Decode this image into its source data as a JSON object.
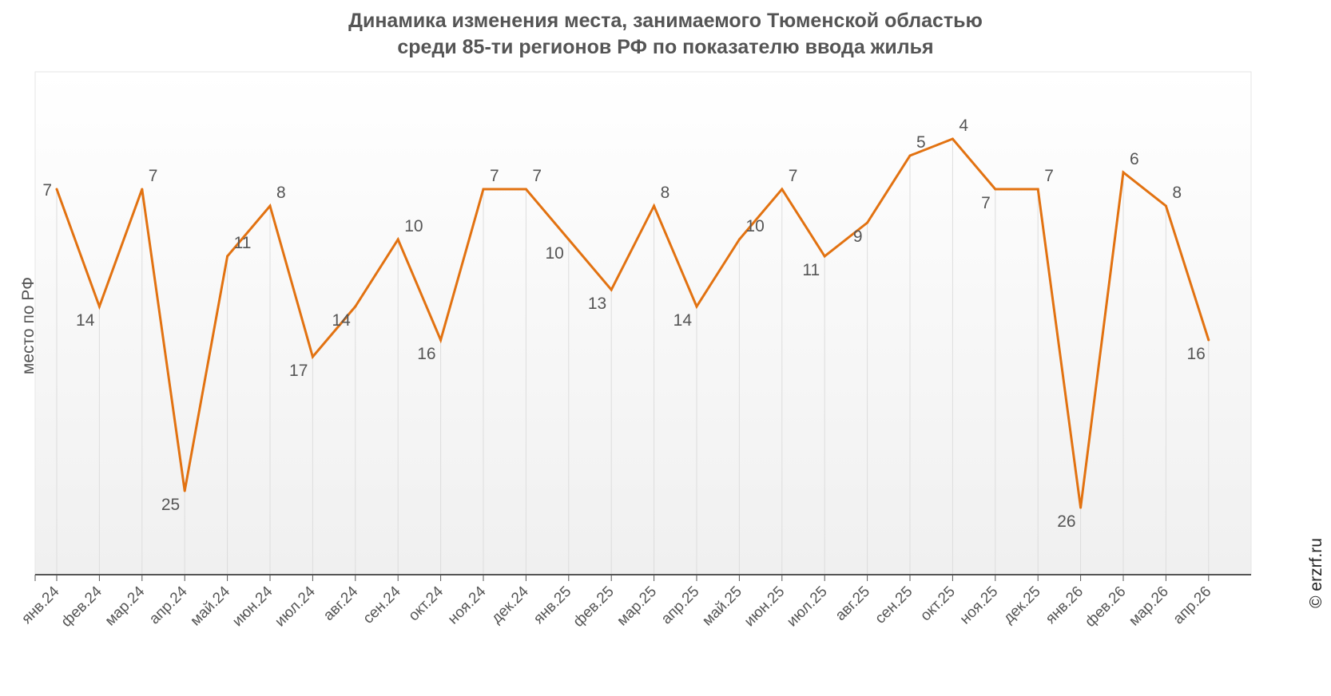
{
  "title_line1": "Динамика изменения места, занимаемого Тюменской областью",
  "title_line2": "среди 85-ти регионов РФ по показателю ввода жилья",
  "credit": "© erzrf.ru",
  "colors": {
    "line": "#E27211",
    "grid": "#dddddd",
    "text": "#555555"
  },
  "chart_data": {
    "type": "line",
    "title": "Динамика изменения места, занимаемого Тюменской областью среди 85-ти регионов РФ по показателю ввода жилья",
    "xlabel": "",
    "ylabel": "место по РФ",
    "y_reversed": true,
    "ylim": [
      0,
      30
    ],
    "grid": "vertical",
    "legend": "none",
    "categories": [
      "янв.24",
      "фев.24",
      "мар.24",
      "апр.24",
      "май.24",
      "июн.24",
      "июл.24",
      "авг.24",
      "сен.24",
      "окт.24",
      "ноя.24",
      "дек.24",
      "янв.25",
      "фев.25",
      "мар.25",
      "апр.25",
      "май.25",
      "июн.25",
      "июл.25",
      "авг.25",
      "сен.25",
      "окт.25",
      "ноя.25",
      "дек.25",
      "янв.26",
      "фев.26",
      "мар.26",
      "апр.26"
    ],
    "series": [
      {
        "values": [
          7,
          14,
          7,
          25,
          11,
          8,
          17,
          14,
          10,
          16,
          7,
          7,
          10,
          13,
          8,
          14,
          10,
          7,
          11,
          9,
          5,
          4,
          7,
          7,
          26,
          6,
          8,
          16
        ]
      }
    ]
  }
}
